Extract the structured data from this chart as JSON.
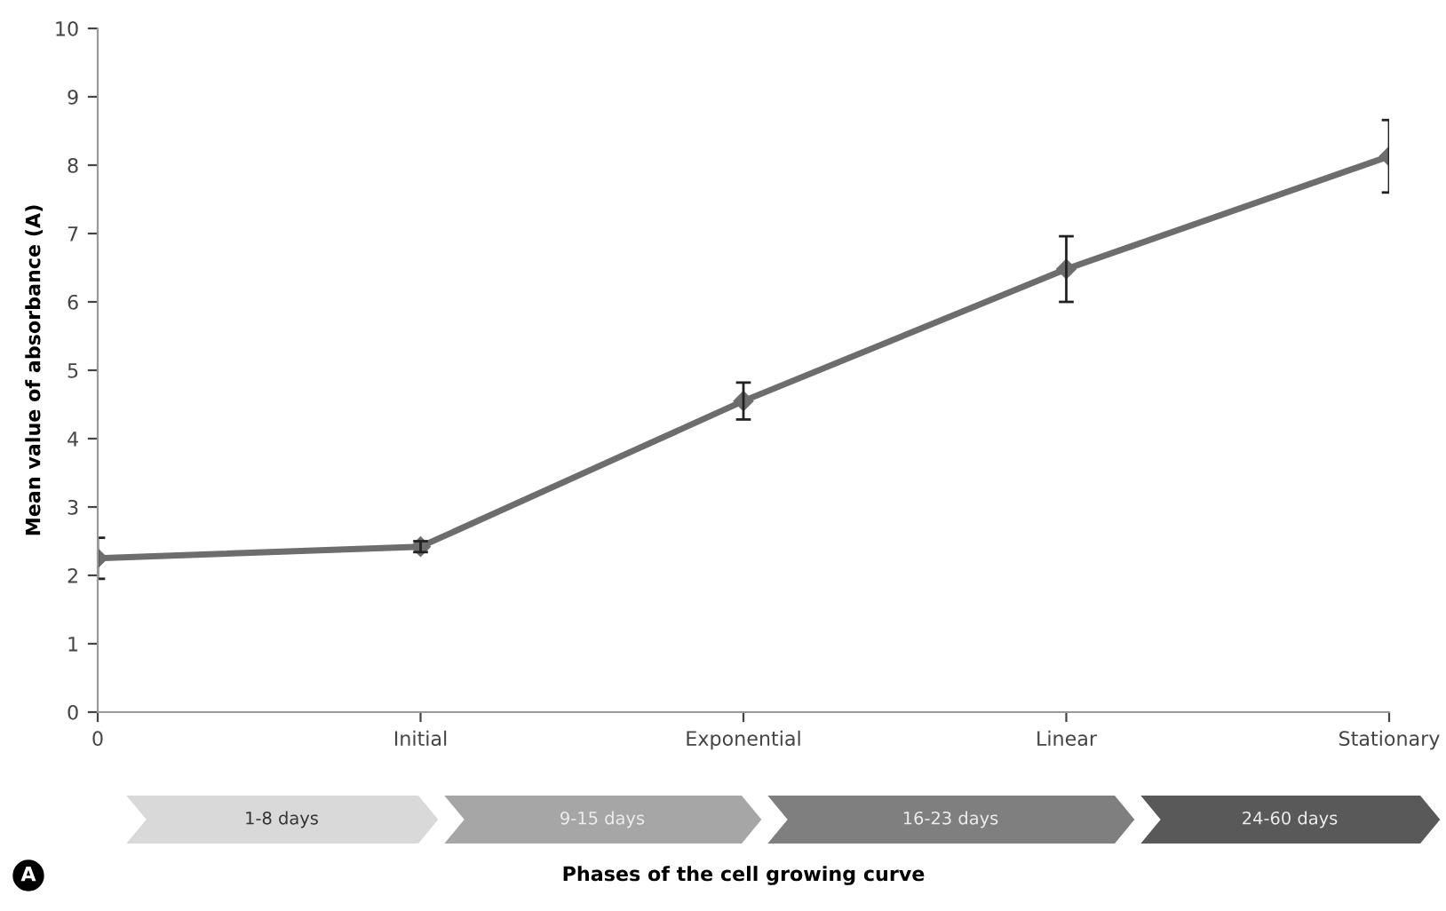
{
  "chart_data": {
    "type": "line",
    "categories": [
      "0",
      "Initial",
      "Exponential",
      "Linear",
      "Stationary"
    ],
    "series": [
      {
        "color": "#6d6d6d",
        "values": [
          2.25,
          2.42,
          4.55,
          6.48,
          8.13
        ],
        "errors": [
          0.3,
          0.08,
          0.27,
          0.48,
          0.53
        ]
      }
    ],
    "ylabel": "Mean value of absorbance (A)",
    "ylim": [
      0,
      10
    ],
    "yticks": [
      0,
      1,
      2,
      3,
      4,
      5,
      6,
      7,
      8,
      9,
      10
    ],
    "marker": "diamond",
    "line_style": "solid",
    "grid": false,
    "legend": false,
    "annotations": [
      "1-8 days",
      "9-15 days",
      "16-23 days",
      "24-60 days",
      "Phases of the cell growing curve",
      "A"
    ]
  }
}
